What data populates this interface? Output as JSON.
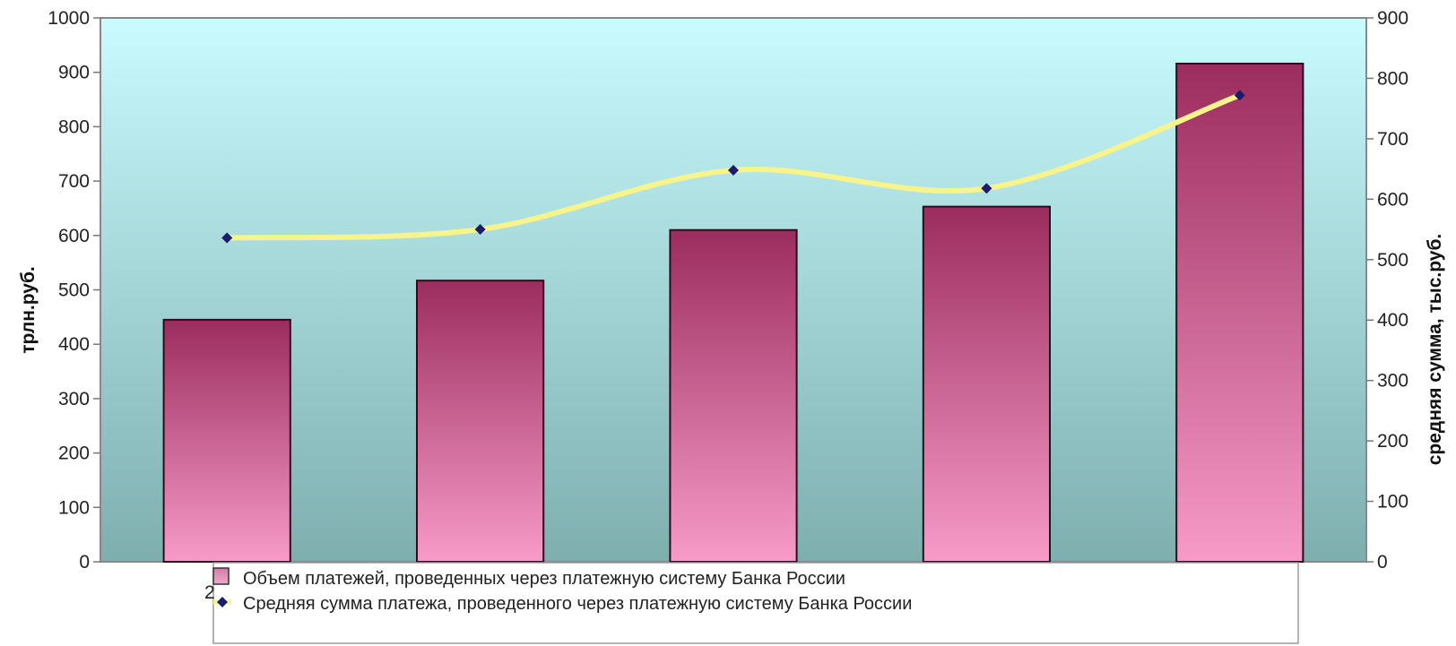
{
  "chart_data": {
    "type": "bar",
    "categories": [
      "",
      "",
      "",
      "",
      ""
    ],
    "series": [
      {
        "name": "Объем платежей, проведенных через платежную систему Банка России",
        "type": "bar",
        "axis": "left",
        "values": [
          445,
          517,
          610,
          653,
          916
        ]
      },
      {
        "name": "Средняя сумма платежа, проведенного через платежную систему Банка России",
        "type": "line",
        "axis": "right",
        "smooth": true,
        "values": [
          536,
          550,
          648,
          618,
          772
        ]
      }
    ],
    "ylabel": "трлн.руб.",
    "y2label": "средняя сумма, тыс.руб.",
    "ylim": [
      0,
      1000
    ],
    "y2lim": [
      0,
      900
    ],
    "yticks": [
      "0",
      "100",
      "200",
      "300",
      "400",
      "500",
      "600",
      "700",
      "800",
      "900",
      "1000"
    ],
    "y2ticks": [
      "0",
      "100",
      "200",
      "300",
      "400",
      "500",
      "600",
      "700",
      "800",
      "900"
    ],
    "legend_position": "bottom",
    "colors": {
      "bar_top": "#9b2d5e",
      "bar_bottom": "#f79bc8",
      "line": "#f6f48a",
      "marker": "#1c1c6e",
      "plot_top": "#c9fbff",
      "plot_bottom": "#7eaeae"
    }
  }
}
